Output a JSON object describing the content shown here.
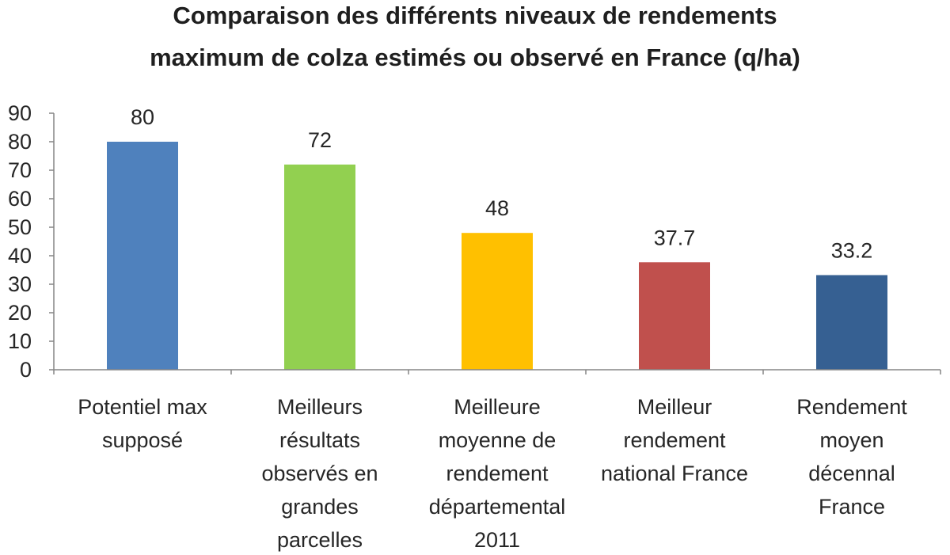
{
  "chart_data": {
    "type": "bar",
    "title_lines": [
      "Comparaison  des différents niveaux de rendements",
      "maximum  de colza estimés ou observé en France (q/ha)"
    ],
    "categories": [
      [
        "Potentiel max",
        "supposé"
      ],
      [
        "Meilleurs",
        "résultats",
        "observés en",
        "grandes",
        "parcelles"
      ],
      [
        "Meilleure",
        "moyenne de",
        "rendement",
        "départemental",
        "2011"
      ],
      [
        "Meilleur",
        "rendement",
        "national France"
      ],
      [
        "Rendement",
        "moyen",
        "décennal",
        "France"
      ]
    ],
    "values": [
      80,
      72,
      48,
      37.7,
      33.2
    ],
    "data_labels": [
      "80",
      "72",
      "48",
      "37.7",
      "33.2"
    ],
    "colors": [
      "#4f81bd",
      "#92d050",
      "#ffc000",
      "#c0504d",
      "#366092"
    ],
    "ylim": [
      0,
      90
    ],
    "yticks": [
      0,
      10,
      20,
      30,
      40,
      50,
      60,
      70,
      80,
      90
    ],
    "grid": false,
    "legend": "none"
  }
}
